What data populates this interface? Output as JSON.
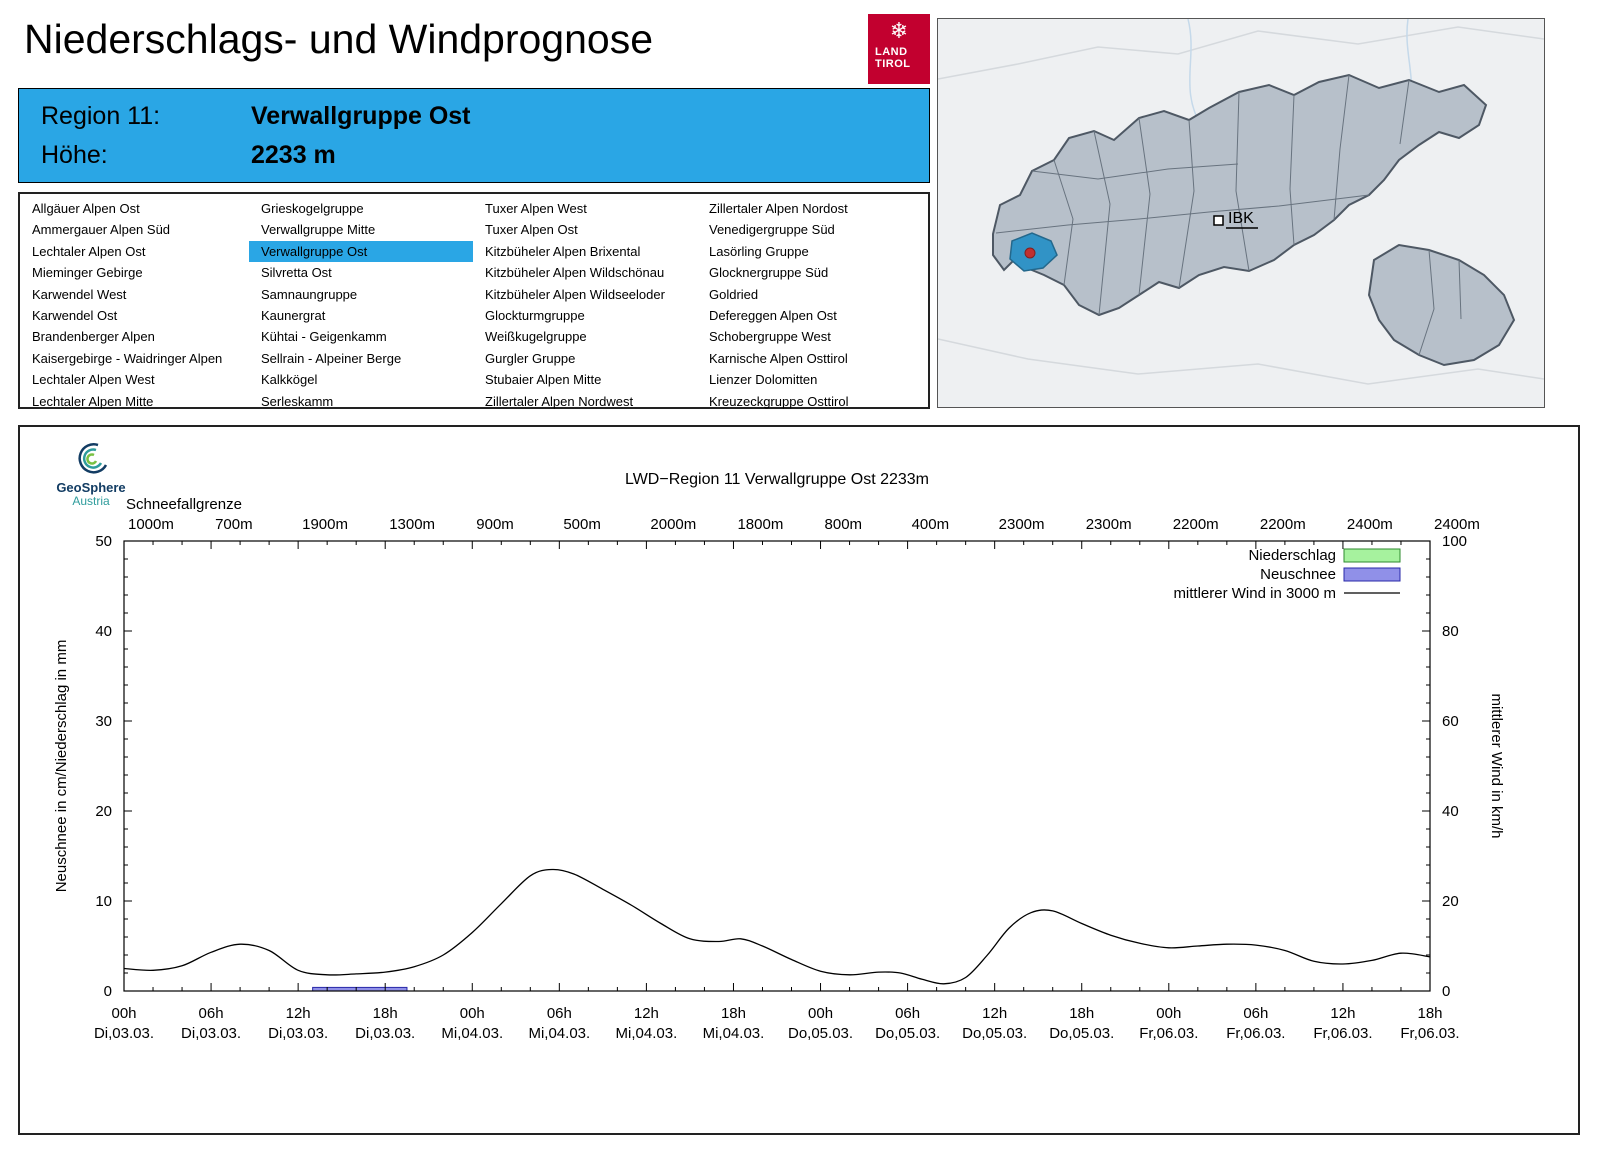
{
  "header": {
    "title": "Niederschlags- und Windprognose",
    "logo_line1": "LAND",
    "logo_line2": "TIROL"
  },
  "info_box": {
    "rows": [
      {
        "label": "Region 11:",
        "value": "Verwallgruppe Ost"
      },
      {
        "label": "Höhe:",
        "value": "2233 m"
      }
    ]
  },
  "regions": {
    "selected": "Verwallgruppe Ost",
    "columns": [
      [
        "Allgäuer Alpen Ost",
        "Ammergauer Alpen Süd",
        "Lechtaler Alpen Ost",
        "Mieminger Gebirge",
        "Karwendel West",
        "Karwendel Ost",
        "Brandenberger Alpen",
        "Kaisergebirge - Waidringer Alpen",
        "Lechtaler Alpen West",
        "Lechtaler Alpen Mitte"
      ],
      [
        "Grieskogelgruppe",
        "Verwallgruppe Mitte",
        "Verwallgruppe Ost",
        "Silvretta Ost",
        "Samnaungruppe",
        "Kaunergrat",
        "Kühtai - Geigenkamm",
        "Sellrain - Alpeiner Berge",
        "Kalkkögel",
        "Serleskamm"
      ],
      [
        "Tuxer Alpen West",
        "Tuxer Alpen Ost",
        "Kitzbüheler Alpen Brixental",
        "Kitzbüheler Alpen Wildschönau",
        "Kitzbüheler Alpen Wildseeloder",
        "Glockturmgruppe",
        "Weißkugelgruppe",
        "Gurgler Gruppe",
        "Stubaier Alpen Mitte",
        "Zillertaler Alpen Nordwest"
      ],
      [
        "Zillertaler Alpen Nordost",
        "Venedigergruppe Süd",
        "Lasörling Gruppe",
        "Glocknergruppe Süd",
        "Goldried",
        "Defereggen Alpen Ost",
        "Schobergruppe West",
        "Karnische Alpen Osttirol",
        "Lienzer Dolomitten",
        "Kreuzeckgruppe Osttirol"
      ]
    ]
  },
  "map": {
    "city_label": "IBK"
  },
  "brand": {
    "name": "GeoSphere",
    "country": "Austria"
  },
  "colors": {
    "accent": "#2aa6e5",
    "logo_red": "#c2002f",
    "map_highlight": "#3193c6",
    "map_marker_red": "#c03030",
    "niederschlag_fill": "#a6f29e",
    "niederschlag_stroke": "#2e8b2e",
    "neuschnee_fill": "#9090e8",
    "neuschnee_stroke": "#2828a8",
    "wind_line": "#000000"
  },
  "chart_data": {
    "type": "line",
    "title": "LWD−Region 11 Verwallgruppe Ost 2233m",
    "snowline_label": "Schneefallgrenze",
    "snowline_values": [
      "1000m",
      "700m",
      "1900m",
      "1300m",
      "900m",
      "500m",
      "2000m",
      "1800m",
      "800m",
      "400m",
      "2300m",
      "2300m",
      "2200m",
      "2200m",
      "2400m",
      "2400m"
    ],
    "ylabel_left": "Neuschnee in cm/Niederschlag in mm",
    "ylabel_right": "mittlerer Wind in km/h",
    "ylim_left": [
      0,
      50
    ],
    "ylim_right": [
      0,
      100
    ],
    "yticks_left": [
      0,
      10,
      20,
      30,
      40,
      50
    ],
    "yticks_right": [
      0,
      20,
      40,
      60,
      80,
      100
    ],
    "x_range_hours": [
      0,
      90
    ],
    "x_tick_hours": [
      0,
      6,
      12,
      18,
      24,
      30,
      36,
      42,
      48,
      54,
      60,
      66,
      72,
      78,
      84,
      90
    ],
    "x_tick_labels_hour": [
      "00h",
      "06h",
      "12h",
      "18h",
      "00h",
      "06h",
      "12h",
      "18h",
      "00h",
      "06h",
      "12h",
      "18h",
      "00h",
      "06h",
      "12h",
      "18h"
    ],
    "x_tick_labels_date": [
      "Di,03.03.",
      "Di,03.03.",
      "Di,03.03.",
      "Di,03.03.",
      "Mi,04.03.",
      "Mi,04.03.",
      "Mi,04.03.",
      "Mi,04.03.",
      "Do,05.03.",
      "Do,05.03.",
      "Do,05.03.",
      "Do,05.03.",
      "Fr,06.03.",
      "Fr,06.03.",
      "Fr,06.03.",
      "Fr,06.03."
    ],
    "legend": [
      {
        "label": "Niederschlag",
        "type": "box",
        "fill": "#a6f29e",
        "stroke": "#2e8b2e"
      },
      {
        "label": "Neuschnee",
        "type": "box",
        "fill": "#9090e8",
        "stroke": "#2828a8"
      },
      {
        "label": "mittlerer Wind in 3000 m",
        "type": "line",
        "stroke": "#000000"
      }
    ],
    "wind_series": {
      "name": "mittlerer Wind in 3000 m",
      "unit": "km/h",
      "points": [
        [
          0,
          5
        ],
        [
          2,
          4.6
        ],
        [
          4,
          5.6
        ],
        [
          6,
          8.6
        ],
        [
          8,
          10.4
        ],
        [
          10,
          9
        ],
        [
          12,
          4.6
        ],
        [
          14,
          3.6
        ],
        [
          16,
          3.8
        ],
        [
          18,
          4.2
        ],
        [
          20,
          5.4
        ],
        [
          22,
          8
        ],
        [
          24,
          13
        ],
        [
          26,
          19.4
        ],
        [
          28,
          25.6
        ],
        [
          29.5,
          27
        ],
        [
          31,
          26
        ],
        [
          33,
          22.6
        ],
        [
          35,
          19
        ],
        [
          37,
          15
        ],
        [
          39,
          11.6
        ],
        [
          41,
          11
        ],
        [
          42.5,
          11.6
        ],
        [
          44,
          10
        ],
        [
          46,
          7
        ],
        [
          48,
          4.4
        ],
        [
          50,
          3.6
        ],
        [
          52,
          4.2
        ],
        [
          53.5,
          4
        ],
        [
          55,
          2.6
        ],
        [
          56.5,
          1.6
        ],
        [
          58,
          3
        ],
        [
          59.5,
          8
        ],
        [
          61,
          14
        ],
        [
          62.5,
          17.4
        ],
        [
          64,
          17.8
        ],
        [
          66,
          15
        ],
        [
          68,
          12.4
        ],
        [
          70,
          10.6
        ],
        [
          72,
          9.6
        ],
        [
          74,
          10
        ],
        [
          76,
          10.4
        ],
        [
          78,
          10.2
        ],
        [
          80,
          9
        ],
        [
          82,
          6.6
        ],
        [
          84,
          6
        ],
        [
          86,
          6.8
        ],
        [
          88,
          8.4
        ],
        [
          90,
          7.6
        ]
      ]
    },
    "neuschnee_bars": [
      {
        "from_hour": 13,
        "to_hour": 19.5,
        "value_cm": 0.4
      }
    ],
    "niederschlag_bars": []
  }
}
